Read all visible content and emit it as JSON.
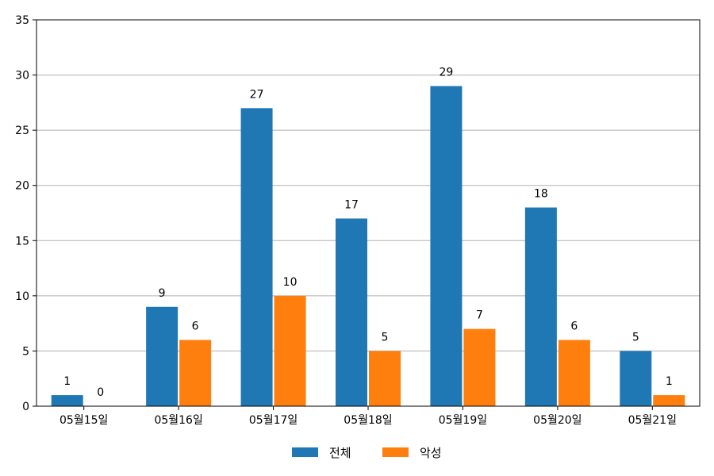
{
  "chart_data": {
    "type": "bar",
    "categories": [
      "05월15일",
      "05월16일",
      "05월17일",
      "05월18일",
      "05월19일",
      "05월20일",
      "05월21일"
    ],
    "series": [
      {
        "name": "전체",
        "color": "#1f77b4",
        "values": [
          1,
          9,
          27,
          17,
          29,
          18,
          5
        ]
      },
      {
        "name": "악성",
        "color": "#ff7f0e",
        "values": [
          0,
          6,
          10,
          5,
          7,
          6,
          1
        ]
      }
    ],
    "ylim": [
      0,
      35
    ],
    "yticks": [
      0,
      5,
      10,
      15,
      20,
      25,
      30,
      35
    ],
    "grid": "horizontal",
    "legend": "bottom-center",
    "data_labels": true
  }
}
